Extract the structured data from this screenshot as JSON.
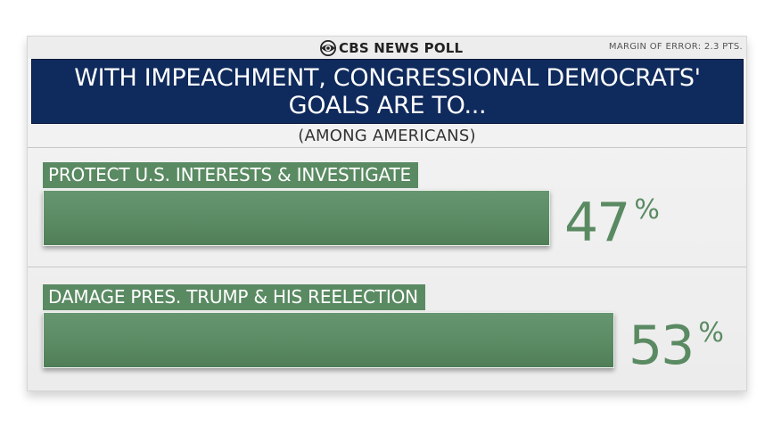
{
  "header": {
    "brand_name": "CBS NEWS POLL",
    "brand_icon": "cbs-eye-icon",
    "margin_of_error": "MARGIN OF ERROR: 2.3 PTS."
  },
  "colors": {
    "title_background": "#0f2a5c",
    "bar": "#5a8a62",
    "value_text": "#5a8a62"
  },
  "chart_data": {
    "type": "bar",
    "orientation": "horizontal",
    "title": "WITH IMPEACHMENT, CONGRESSIONAL DEMOCRATS' GOALS ARE TO...",
    "subtitle": "(AMONG AMERICANS)",
    "categories": [
      "PROTECT U.S. INTERESTS & INVESTIGATE",
      "DAMAGE PRES. TRUMP & HIS REELECTION"
    ],
    "values": [
      47,
      53
    ],
    "value_labels": [
      "47",
      "53"
    ],
    "unit": "%",
    "xlim": [
      0,
      100
    ],
    "grid": false,
    "legend": false
  }
}
